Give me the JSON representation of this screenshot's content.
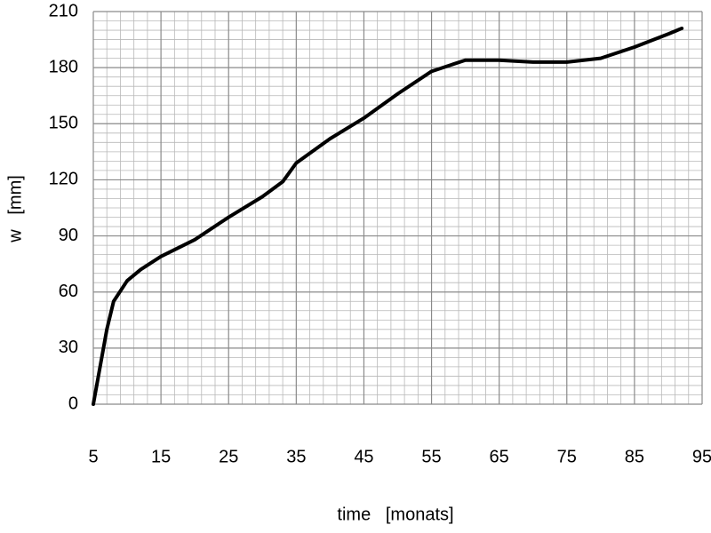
{
  "chart_data": {
    "type": "line",
    "xlabel": "time   [monats]",
    "ylabel": "w   [mm]",
    "x": [
      5,
      6,
      7,
      8,
      10,
      12,
      15,
      20,
      25,
      30,
      33,
      35,
      40,
      45,
      50,
      55,
      60,
      65,
      70,
      75,
      80,
      85,
      90,
      92
    ],
    "series": [
      {
        "color": "#000000",
        "values": [
          0,
          20,
          40,
          55,
          66,
          72,
          79,
          88,
          100,
          111,
          119,
          129,
          142,
          153,
          166,
          178,
          184,
          184,
          183,
          183,
          185,
          191,
          198,
          201
        ]
      }
    ],
    "xlim": [
      5,
      95
    ],
    "xticks": [
      5,
      15,
      25,
      35,
      45,
      55,
      65,
      75,
      85,
      95
    ],
    "ylim": [
      0,
      210
    ],
    "yticks": [
      0,
      30,
      60,
      90,
      120,
      150,
      180,
      210
    ],
    "grid": true,
    "minor_divisions": {
      "x": 5,
      "y": 6
    }
  }
}
